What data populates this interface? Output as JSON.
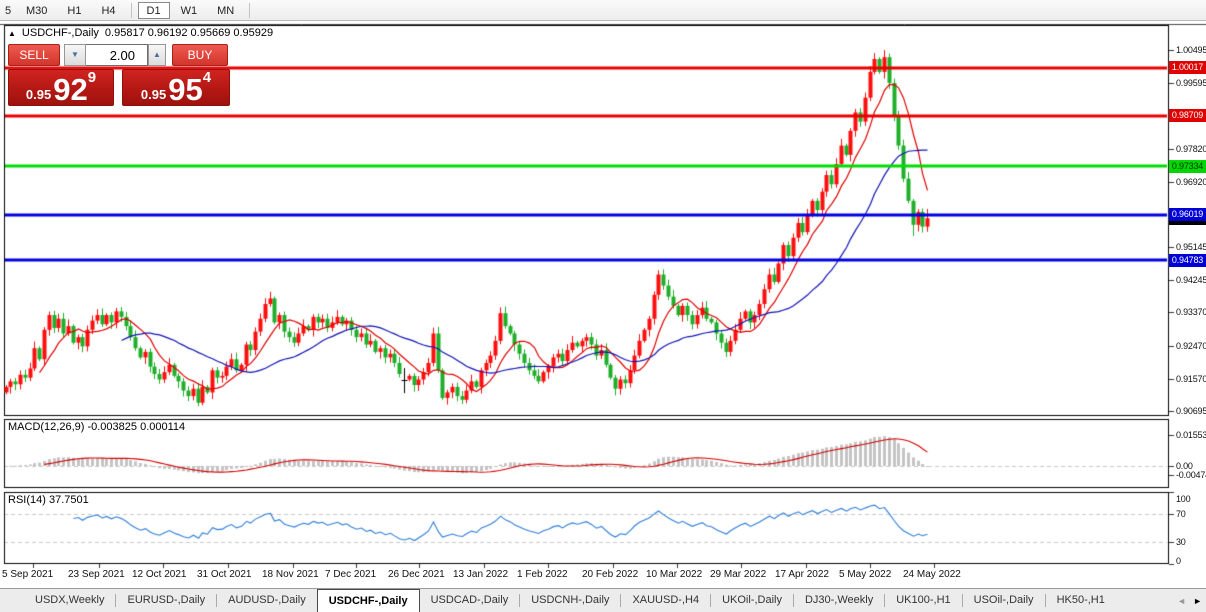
{
  "toolbar": {
    "timeframes": [
      "5",
      "M30",
      "H1",
      "H4",
      "D1",
      "W1",
      "MN"
    ],
    "selected": "D1"
  },
  "chart_header": {
    "collapse_icon": "▲",
    "title": "USDCHF-,Daily",
    "ohlc": "0.95817 0.96192 0.95669 0.95929"
  },
  "trade_panel": {
    "sell_label": "SELL",
    "buy_label": "BUY",
    "volume": "2.00",
    "sell_price": {
      "small": "0.95",
      "big": "92",
      "sup": "9"
    },
    "buy_price": {
      "small": "0.95",
      "big": "95",
      "sup": "4"
    },
    "spin_down_icon": "▼",
    "spin_up_icon": "▲"
  },
  "price_axis": {
    "ticks": [
      "1.00495",
      "0.99595",
      "0.97820",
      "0.96920",
      "0.95145",
      "0.94245",
      "0.93370",
      "0.92470",
      "0.91570",
      "0.90695"
    ],
    "badges": [
      {
        "value": "0.95929",
        "bg": "#000000",
        "fg": "#FFFFFF",
        "name": "current-price-badge"
      },
      {
        "value": "1.00017",
        "bg": "#DF0000",
        "fg": "#FFFFFF",
        "name": "resistance-line-badge"
      },
      {
        "value": "0.98709",
        "bg": "#DF0000",
        "fg": "#FFFFFF",
        "name": "resistance-line-badge"
      },
      {
        "value": "0.97334",
        "bg": "#00D600",
        "fg": "#003300",
        "name": "pivot-line-badge"
      },
      {
        "value": "0.96019",
        "bg": "#0000D6",
        "fg": "#FFFFFF",
        "name": "support-line-badge"
      },
      {
        "value": "0.94783",
        "bg": "#0000D6",
        "fg": "#FFFFFF",
        "name": "support-line-badge"
      }
    ]
  },
  "macd_pane": {
    "label": "MACD(12,26,9) -0.003825 0.000114",
    "axis": [
      {
        "v": 0.015534,
        "text": "0.015534"
      },
      {
        "v": 0,
        "text": "0.00"
      },
      {
        "v": -0.004741,
        "text": "-0.00474"
      }
    ]
  },
  "rsi_pane": {
    "label": "RSI(14) 37.7501",
    "axis": [
      {
        "v": 100,
        "text": "100"
      },
      {
        "v": 70,
        "text": "70"
      },
      {
        "v": 30,
        "text": "30"
      },
      {
        "v": 0,
        "text": "0"
      }
    ],
    "levels": [
      70,
      30
    ]
  },
  "date_axis": [
    "5 Sep 2021",
    "23 Sep 2021",
    "12 Oct 2021",
    "31 Oct 2021",
    "18 Nov 2021",
    "7 Dec 2021",
    "26 Dec 2021",
    "13 Jan 2022",
    "1 Feb 2022",
    "20 Feb 2022",
    "10 Mar 2022",
    "29 Mar 2022",
    "17 Apr 2022",
    "5 May 2022",
    "24 May 2022"
  ],
  "tabs": {
    "items": [
      "USDX,Weekly",
      "EURUSD-,Daily",
      "AUDUSD-,Daily",
      "USDCHF-,Daily",
      "USDCAD-,Daily",
      "USDCNH-,Daily",
      "XAUUSD-,H4",
      "UKOil-,Daily",
      "DJ30-,Weekly",
      "UK100-,H1",
      "USOil-,Daily",
      "HK50-,H1"
    ],
    "active": "USDCHF-,Daily",
    "scroll_left_icon": "◄",
    "scroll_right_icon": "►"
  },
  "chart_data": {
    "type": "candlestick",
    "symbol": "USDCHF-",
    "timeframe": "Daily",
    "levels": [
      {
        "price": 1.00017,
        "color": "#E80000",
        "width": 3
      },
      {
        "price": 0.98709,
        "color": "#E80000",
        "width": 3
      },
      {
        "price": 0.97334,
        "color": "#00DC00",
        "width": 3
      },
      {
        "price": 0.96019,
        "color": "#0000E0",
        "width": 3
      },
      {
        "price": 0.94783,
        "color": "#0000E0",
        "width": 3
      }
    ],
    "y_range": {
      "max": 1.01146,
      "min": 0.90587
    },
    "open_first": 0.912,
    "closes": [
      0.9135,
      0.915,
      0.9142,
      0.9168,
      0.916,
      0.9185,
      0.924,
      0.921,
      0.929,
      0.933,
      0.9295,
      0.932,
      0.928,
      0.93,
      0.9255,
      0.927,
      0.9245,
      0.929,
      0.9315,
      0.933,
      0.9305,
      0.933,
      0.931,
      0.934,
      0.9325,
      0.93,
      0.927,
      0.924,
      0.9215,
      0.923,
      0.919,
      0.917,
      0.9155,
      0.9175,
      0.9195,
      0.9165,
      0.915,
      0.9125,
      0.911,
      0.913,
      0.9092,
      0.9135,
      0.912,
      0.918,
      0.916,
      0.9165,
      0.919,
      0.921,
      0.918,
      0.9195,
      0.925,
      0.9235,
      0.9285,
      0.932,
      0.936,
      0.9375,
      0.931,
      0.933,
      0.9285,
      0.927,
      0.9255,
      0.928,
      0.93,
      0.929,
      0.9325,
      0.931,
      0.932,
      0.9295,
      0.931,
      0.9325,
      0.9305,
      0.9315,
      0.929,
      0.927,
      0.928,
      0.925,
      0.926,
      0.923,
      0.924,
      0.9215,
      0.9225,
      0.92,
      0.917,
      0.9155,
      0.9165,
      0.914,
      0.9155,
      0.9175,
      0.92,
      0.928,
      0.918,
      0.9105,
      0.912,
      0.9135,
      0.911,
      0.91,
      0.9125,
      0.915,
      0.9135,
      0.918,
      0.92,
      0.922,
      0.926,
      0.9335,
      0.93,
      0.928,
      0.925,
      0.9225,
      0.92,
      0.918,
      0.9165,
      0.915,
      0.9175,
      0.919,
      0.9215,
      0.9225,
      0.9205,
      0.9235,
      0.9255,
      0.9245,
      0.926,
      0.927,
      0.925,
      0.922,
      0.9235,
      0.9195,
      0.916,
      0.913,
      0.9155,
      0.9145,
      0.918,
      0.922,
      0.926,
      0.929,
      0.932,
      0.9385,
      0.944,
      0.941,
      0.938,
      0.9355,
      0.933,
      0.9355,
      0.933,
      0.9305,
      0.933,
      0.935,
      0.932,
      0.931,
      0.928,
      0.9255,
      0.923,
      0.926,
      0.929,
      0.932,
      0.934,
      0.931,
      0.933,
      0.936,
      0.94,
      0.944,
      0.942,
      0.947,
      0.952,
      0.949,
      0.954,
      0.958,
      0.9555,
      0.96,
      0.964,
      0.9615,
      0.9665,
      0.971,
      0.9685,
      0.974,
      0.979,
      0.9765,
      0.983,
      0.988,
      0.9855,
      0.992,
      0.999,
      1.0025,
      0.999,
      1.003,
      0.996,
      0.987,
      0.979,
      0.97,
      0.964,
      0.9575,
      0.961,
      0.957,
      0.95929
    ],
    "special_candles": [
      {
        "i": 83,
        "doji": true,
        "price": 0.9155,
        "high": 0.9186,
        "low": 0.9118
      },
      {
        "i": 181,
        "high": 1.0041
      },
      {
        "i": 183,
        "high": 1.00495
      },
      {
        "i": 189,
        "low": 0.9545
      },
      {
        "i": 192,
        "high": 0.9618
      }
    ],
    "bull_color": "#FF0E0E",
    "bear_color": "#1FAF2A",
    "doji_color": "#000000",
    "ma_fast": {
      "period": 8,
      "color": "#E00000"
    },
    "ma_slow": {
      "period": 25,
      "color": "#1414B4"
    },
    "macd": {
      "fast": 12,
      "slow": 26,
      "signal": 9,
      "hist_color": "#C4C4C4",
      "signal_color": "#D40000",
      "level_color": "#C9C9C9"
    },
    "rsi": {
      "period": 14,
      "color": "#2F7ED8",
      "level_color": "#C9C9C9"
    }
  }
}
